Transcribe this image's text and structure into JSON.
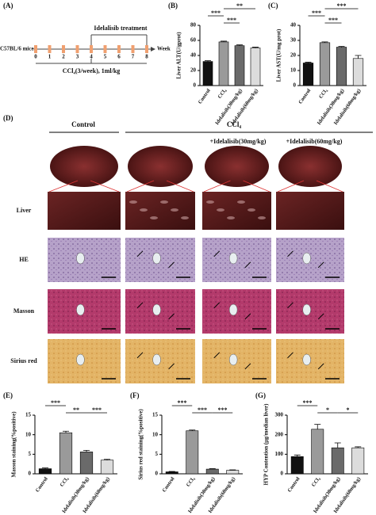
{
  "panel_a": {
    "label": "(A)",
    "strain": "C57BL/6 mice",
    "weeks": [
      0,
      1,
      2,
      3,
      4,
      5,
      6,
      7,
      8
    ],
    "week_label": "Week",
    "treatment": "Idelalisib treatment",
    "model": "CCl₄(3/week), 1ml/kg"
  },
  "panel_d": {
    "label": "(D)",
    "columns": [
      "Control",
      "CCl₄",
      "+Idelalisib(30mg/kg)",
      "+Idelalisib(60mg/kg)"
    ],
    "rows": [
      "Liver",
      "HE",
      "Masson",
      "Sirius red"
    ]
  },
  "chart_data": [
    {
      "type": "bar",
      "panel_label": "(B)",
      "y_label": "Liver ALT(U/gprot)",
      "categories": [
        "Control",
        "CCl₄",
        "Idelalisib(30mg/kg)",
        "Idelalisib(60mg/kg)"
      ],
      "values": [
        32,
        58,
        53,
        50
      ],
      "errors": [
        1,
        1,
        1,
        1
      ],
      "colors": [
        "#111111",
        "#9a9a9a",
        "#6a6a6a",
        "#dcdcdc"
      ],
      "annotations": [
        "***",
        "***",
        "**"
      ],
      "ylim": [
        0,
        80
      ],
      "yticks": [
        0,
        20,
        40,
        60,
        80
      ]
    },
    {
      "type": "bar",
      "panel_label": "(C)",
      "y_label": "Liver AST(U/mg prot)",
      "categories": [
        "Control",
        "CCl₄",
        "Idelalisib(30mg/kg)",
        "Idelalisib(60mg/kg)"
      ],
      "values": [
        15,
        28.5,
        25.5,
        18
      ],
      "errors": [
        0.5,
        0.5,
        0.5,
        2
      ],
      "colors": [
        "#111111",
        "#9a9a9a",
        "#6a6a6a",
        "#dcdcdc"
      ],
      "annotations": [
        "***",
        "***",
        "***"
      ],
      "ylim": [
        0,
        40
      ],
      "yticks": [
        0,
        10,
        20,
        30,
        40
      ]
    },
    {
      "type": "bar",
      "panel_label": "(E)",
      "y_label": "Masson staining(%positive)",
      "categories": [
        "Control",
        "CCl₄",
        "Idelalisib(30mg/kg)",
        "Idelalisib(60mg/kg)"
      ],
      "values": [
        1.3,
        10.5,
        5.6,
        3.5
      ],
      "errors": [
        0.2,
        0.4,
        0.4,
        0.2
      ],
      "colors": [
        "#111111",
        "#9a9a9a",
        "#6a6a6a",
        "#dcdcdc"
      ],
      "annotations": [
        "***",
        "**",
        "***"
      ],
      "ylim": [
        0,
        15
      ],
      "yticks": [
        0,
        5,
        10,
        15
      ]
    },
    {
      "type": "bar",
      "panel_label": "(F)",
      "y_label": "Sirius red staining(%positive)",
      "categories": [
        "Control",
        "CCl₄",
        "Idelalisib(30mg/kg)",
        "Idelalisib(60mg/kg)"
      ],
      "values": [
        0.5,
        11,
        1.2,
        0.9
      ],
      "errors": [
        0.1,
        0.2,
        0.1,
        0.1
      ],
      "colors": [
        "#111111",
        "#9a9a9a",
        "#6a6a6a",
        "#dcdcdc"
      ],
      "annotations": [
        "***",
        "***",
        "***"
      ],
      "ylim": [
        0,
        15
      ],
      "yticks": [
        0,
        5,
        10,
        15
      ]
    },
    {
      "type": "bar",
      "panel_label": "(G)",
      "y_label": "HYP Contention (μg/median liver)",
      "categories": [
        "Control",
        "CCl₄",
        "Idelalisib(30mg/kg)",
        "Idelalisib(60mg/kg)"
      ],
      "values": [
        88,
        228,
        133,
        133
      ],
      "errors": [
        8,
        25,
        25,
        5
      ],
      "colors": [
        "#111111",
        "#9a9a9a",
        "#6a6a6a",
        "#dcdcdc"
      ],
      "annotations": [
        "***",
        "*",
        "*"
      ],
      "ylim": [
        0,
        300
      ],
      "yticks": [
        0,
        100,
        200,
        300
      ]
    }
  ]
}
